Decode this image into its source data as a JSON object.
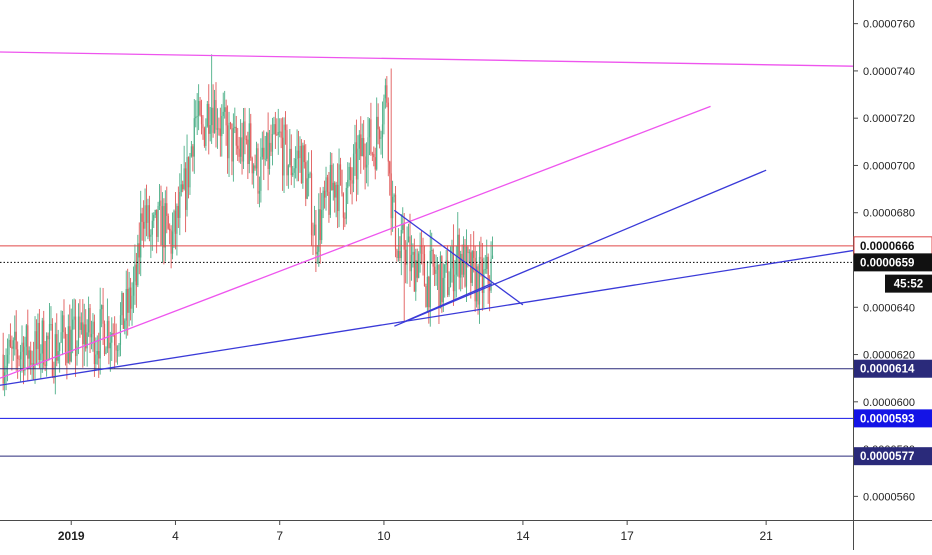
{
  "chart_data": {
    "type": "candlestick",
    "title": "",
    "xlabel": "",
    "ylabel": "",
    "x_ticks": [
      {
        "day": 1,
        "label": "2019"
      },
      {
        "day": 4,
        "label": "4"
      },
      {
        "day": 7,
        "label": "7"
      },
      {
        "day": 10,
        "label": "10"
      },
      {
        "day": 14,
        "label": "14"
      },
      {
        "day": 17,
        "label": "17"
      },
      {
        "day": 21,
        "label": "21"
      }
    ],
    "xlim_days": [
      -1.05,
      23.5
    ],
    "y_ticks": [
      5.6e-05,
      5.8e-05,
      6e-05,
      6.2e-05,
      6.4e-05,
      6.6e-05,
      6.8e-05,
      7e-05,
      7.2e-05,
      7.4e-05,
      7.6e-05
    ],
    "y_tick_labels": [
      "0.0000560",
      "0.0000580",
      "0.0000600",
      "0.0000620",
      "0.0000640",
      "0.0000660",
      "0.0000680",
      "0.0000700",
      "0.0000720",
      "0.0000740",
      "0.0000760"
    ],
    "ylim": [
      5.5e-05,
      7.7e-05
    ],
    "grid": false,
    "legend": "none",
    "colors": {
      "up": "#4caf88",
      "down": "#e05a5a",
      "magenta": "#ee55ee",
      "blue": "#3a3ad8",
      "resistance": "#e04848",
      "navy_label": "#2a2a7a",
      "blue_label": "#1414e6"
    },
    "price_anchors": [
      {
        "day": -1.0,
        "price": 6.2e-05
      },
      {
        "day": -0.7,
        "price": 6.18e-05
      },
      {
        "day": -0.4,
        "price": 6.24e-05
      },
      {
        "day": -0.1,
        "price": 6.2e-05
      },
      {
        "day": 0.2,
        "price": 6.26e-05
      },
      {
        "day": 0.5,
        "price": 6.22e-05
      },
      {
        "day": 0.8,
        "price": 6.28e-05
      },
      {
        "day": 1.1,
        "price": 6.25e-05
      },
      {
        "day": 1.4,
        "price": 6.3e-05
      },
      {
        "day": 1.7,
        "price": 6.27e-05
      },
      {
        "day": 2.0,
        "price": 6.32e-05
      },
      {
        "day": 2.3,
        "price": 6.3e-05
      },
      {
        "day": 2.6,
        "price": 6.38e-05
      },
      {
        "day": 2.9,
        "price": 6.52e-05
      },
      {
        "day": 3.05,
        "price": 6.85e-05
      },
      {
        "day": 3.3,
        "price": 6.68e-05
      },
      {
        "day": 3.6,
        "price": 6.76e-05
      },
      {
        "day": 3.9,
        "price": 6.68e-05
      },
      {
        "day": 4.2,
        "price": 6.84e-05
      },
      {
        "day": 4.4,
        "price": 7e-05
      },
      {
        "day": 4.55,
        "price": 7.22e-05
      },
      {
        "day": 4.75,
        "price": 7.12e-05
      },
      {
        "day": 5.0,
        "price": 7.28e-05
      },
      {
        "day": 5.2,
        "price": 7.22e-05
      },
      {
        "day": 5.45,
        "price": 7.12e-05
      },
      {
        "day": 5.8,
        "price": 7.06e-05
      },
      {
        "day": 6.1,
        "price": 7.1e-05
      },
      {
        "day": 6.4,
        "price": 6.96e-05
      },
      {
        "day": 6.7,
        "price": 7.04e-05
      },
      {
        "day": 7.0,
        "price": 7.1e-05
      },
      {
        "day": 7.3,
        "price": 7e-05
      },
      {
        "day": 7.6,
        "price": 7.05e-05
      },
      {
        "day": 7.9,
        "price": 6.84e-05
      },
      {
        "day": 8.0,
        "price": 6.7e-05
      },
      {
        "day": 8.3,
        "price": 6.82e-05
      },
      {
        "day": 8.6,
        "price": 6.94e-05
      },
      {
        "day": 8.9,
        "price": 6.86e-05
      },
      {
        "day": 9.2,
        "price": 7e-05
      },
      {
        "day": 9.5,
        "price": 7.12e-05
      },
      {
        "day": 9.7,
        "price": 7.06e-05
      },
      {
        "day": 9.9,
        "price": 7.22e-05
      },
      {
        "day": 10.1,
        "price": 7.32e-05
      },
      {
        "day": 10.15,
        "price": 6.95e-05
      },
      {
        "day": 10.3,
        "price": 6.76e-05
      },
      {
        "day": 10.45,
        "price": 6.6e-05
      },
      {
        "day": 10.6,
        "price": 6.68e-05
      },
      {
        "day": 10.8,
        "price": 6.56e-05
      },
      {
        "day": 11.0,
        "price": 6.62e-05
      },
      {
        "day": 11.2,
        "price": 6.5e-05
      },
      {
        "day": 11.45,
        "price": 6.55e-05
      },
      {
        "day": 11.7,
        "price": 6.48e-05
      },
      {
        "day": 11.95,
        "price": 6.56e-05
      },
      {
        "day": 12.15,
        "price": 6.64e-05
      },
      {
        "day": 12.35,
        "price": 6.56e-05
      },
      {
        "day": 12.6,
        "price": 6.52e-05
      },
      {
        "day": 12.85,
        "price": 6.5e-05
      },
      {
        "day": 13.05,
        "price": 6.54e-05
      },
      {
        "day": 13.15,
        "price": 6.59e-05
      }
    ],
    "extremes": [
      {
        "day": 5.05,
        "high": 7.47e-05
      },
      {
        "day": 10.22,
        "high": 7.41e-05
      },
      {
        "day": 10.6,
        "low": 6.34e-05
      }
    ],
    "trendlines": [
      {
        "name": "magenta-top",
        "color": "magenta",
        "p1": {
          "day": -1.05,
          "price": 7.48e-05
        },
        "p2": {
          "day": 23.5,
          "price": 7.42e-05
        }
      },
      {
        "name": "magenta-rising",
        "color": "magenta",
        "p1": {
          "day": -1.05,
          "price": 6.1e-05
        },
        "p2": {
          "day": 19.4,
          "price": 7.25e-05
        }
      },
      {
        "name": "blue-channel-bottom",
        "color": "blue",
        "p1": {
          "day": -1.05,
          "price": 6.07e-05
        },
        "p2": {
          "day": 23.5,
          "price": 6.64e-05
        }
      },
      {
        "name": "blue-rising",
        "color": "blue",
        "p1": {
          "day": 10.3,
          "price": 6.32e-05
        },
        "p2": {
          "day": 21.0,
          "price": 6.98e-05
        }
      },
      {
        "name": "blue-falling",
        "color": "blue",
        "p1": {
          "day": 10.3,
          "price": 6.81e-05
        },
        "p2": {
          "day": 14.0,
          "price": 6.41e-05
        }
      },
      {
        "name": "blue-triangle-lower",
        "color": "blue",
        "p1": {
          "day": 10.6,
          "price": 6.34e-05
        },
        "p2": {
          "day": 13.1,
          "price": 6.5e-05
        }
      }
    ],
    "horizontal_lines": [
      {
        "price": 6.66e-05,
        "label": "0.0000666",
        "color": "resistance",
        "style": "solid"
      },
      {
        "price": 6.59e-05,
        "label": "0.0000659",
        "color": "#000000",
        "style": "dotted"
      },
      {
        "price": 6.14e-05,
        "label": "0.0000614",
        "color": "navy_label",
        "style": "solid"
      },
      {
        "price": 5.93e-05,
        "label": "0.0000593",
        "color": "blue_label",
        "style": "solid"
      },
      {
        "price": 5.77e-05,
        "label": "0.0000577",
        "color": "navy_label",
        "style": "solid"
      }
    ],
    "countdown": {
      "label": "45:52",
      "price": 6.5e-05
    }
  }
}
